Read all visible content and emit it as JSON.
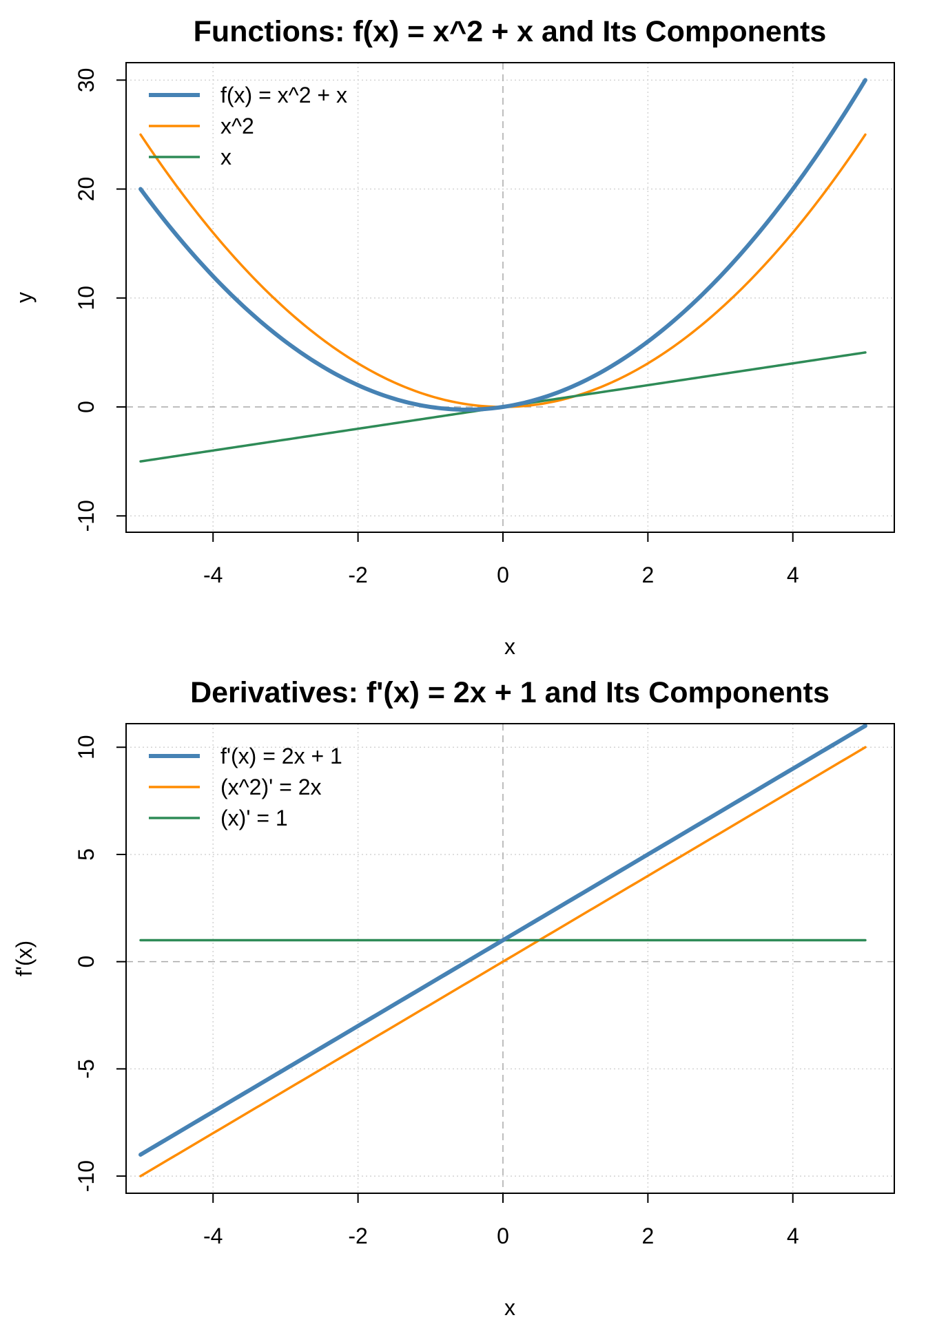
{
  "chart_data": [
    {
      "type": "line",
      "title": "Functions: f(x) = x^2 + x and Its Components",
      "xlabel": "x",
      "ylabel": "y",
      "xlim": [
        -5.2,
        5.4
      ],
      "ylim": [
        -11.5,
        31.6
      ],
      "x_ticks": [
        -4,
        -2,
        0,
        2,
        4
      ],
      "x_tick_labels": [
        "-4",
        "-2",
        "0",
        "2",
        "4"
      ],
      "y_ticks": [
        -10,
        0,
        10,
        20,
        30
      ],
      "y_tick_labels": [
        "-10",
        "0",
        "10",
        "20",
        "30"
      ],
      "grid": true,
      "zero_lines": true,
      "legend_position": "top-left",
      "x_range": [
        -5,
        5
      ],
      "series": [
        {
          "name": "f(x) = x^2 + x",
          "expression": "x^2 + x",
          "color": "#4682B4",
          "linewidth": "thick",
          "x": [
            -5,
            -4,
            -3,
            -2,
            -1,
            0,
            1,
            2,
            3,
            4,
            5
          ],
          "values": [
            20,
            12,
            6,
            2,
            0,
            0,
            2,
            6,
            12,
            20,
            30
          ]
        },
        {
          "name": "x^2",
          "expression": "x^2",
          "color": "#FF8C00",
          "linewidth": "normal",
          "x": [
            -5,
            -4,
            -3,
            -2,
            -1,
            0,
            1,
            2,
            3,
            4,
            5
          ],
          "values": [
            25,
            16,
            9,
            4,
            1,
            0,
            1,
            4,
            9,
            16,
            25
          ]
        },
        {
          "name": "x",
          "expression": "x",
          "color": "#2E8B57",
          "linewidth": "normal",
          "x": [
            -5,
            5
          ],
          "values": [
            -5,
            5
          ]
        }
      ]
    },
    {
      "type": "line",
      "title": "Derivatives: f'(x) = 2x + 1 and Its Components",
      "xlabel": "x",
      "ylabel": "f'(x)",
      "xlim": [
        -5.2,
        5.4
      ],
      "ylim": [
        -10.8,
        11.1
      ],
      "x_ticks": [
        -4,
        -2,
        0,
        2,
        4
      ],
      "x_tick_labels": [
        "-4",
        "-2",
        "0",
        "2",
        "4"
      ],
      "y_ticks": [
        -10,
        -5,
        0,
        5,
        10
      ],
      "y_tick_labels": [
        "-10",
        "-5",
        "0",
        "5",
        "10"
      ],
      "grid": true,
      "zero_lines": true,
      "legend_position": "top-left",
      "x_range": [
        -5,
        5
      ],
      "series": [
        {
          "name": "f'(x) = 2x + 1",
          "expression": "2x + 1",
          "color": "#4682B4",
          "linewidth": "thick",
          "x": [
            -5,
            5
          ],
          "values": [
            -9,
            11
          ]
        },
        {
          "name": "(x^2)' = 2x",
          "expression": "2x",
          "color": "#FF8C00",
          "linewidth": "normal",
          "x": [
            -5,
            5
          ],
          "values": [
            -10,
            10
          ]
        },
        {
          "name": "(x)' = 1",
          "expression": "1",
          "color": "#2E8B57",
          "linewidth": "normal",
          "x": [
            -5,
            5
          ],
          "values": [
            1,
            1
          ]
        }
      ]
    }
  ]
}
